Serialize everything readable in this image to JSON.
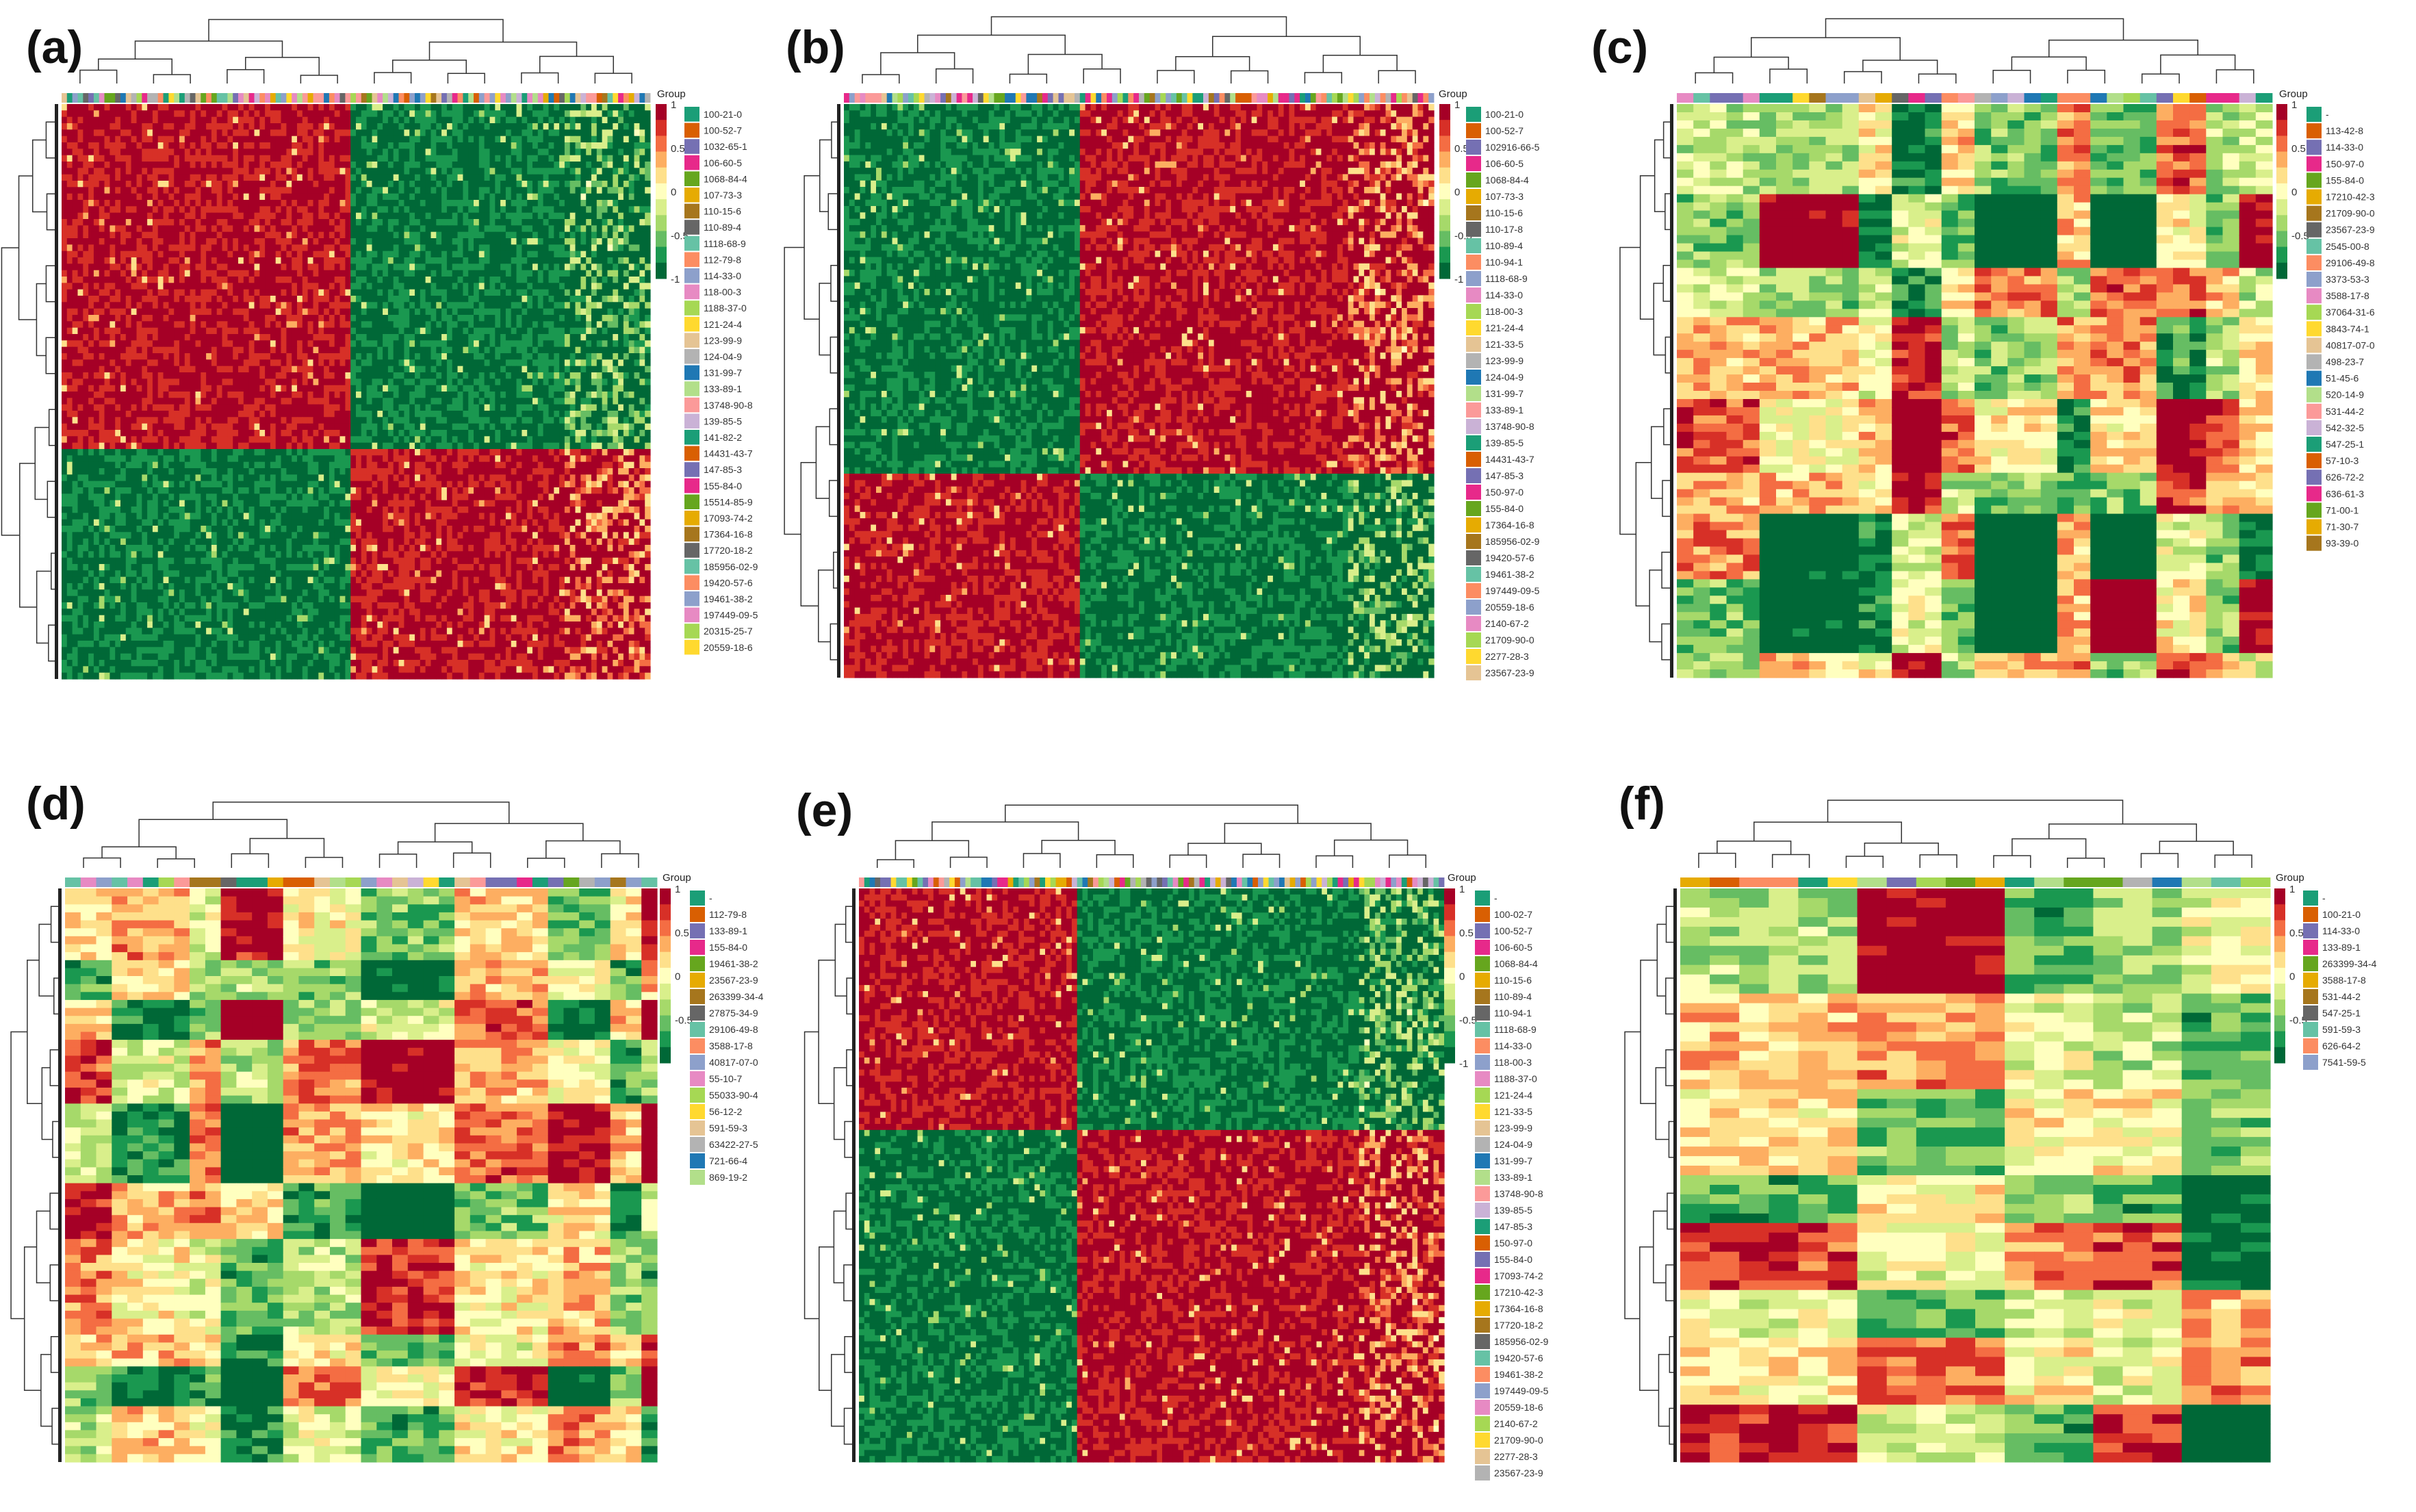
{
  "figure": {
    "legend_title": "Group",
    "colorscale": {
      "colors": [
        "#006837",
        "#1a9850",
        "#66bd63",
        "#a6d96a",
        "#d9ef8b",
        "#ffffbf",
        "#fee08b",
        "#fdae61",
        "#f46d43",
        "#d73027",
        "#a50026"
      ],
      "ticks_a": [
        "1",
        "0.5",
        "0",
        "-0.5",
        "-1"
      ],
      "ticks_b": [
        "1",
        "0.5",
        "0",
        "-0.5",
        "-1"
      ],
      "ticks_c": [
        "1",
        "0.5",
        "0",
        "-0.5"
      ],
      "ticks_d": [
        "1",
        "0.5",
        "0",
        "-0.5"
      ],
      "ticks_e": [
        "1",
        "0.5",
        "0",
        "-0.5",
        "-1"
      ],
      "ticks_f": [
        "1",
        "0.5",
        "0",
        "-0.5"
      ]
    },
    "group_palette": [
      "#1b9e77",
      "#d95f02",
      "#7570b3",
      "#e7298a",
      "#66a61e",
      "#e6ab02",
      "#a6761d",
      "#666666",
      "#66c2a5",
      "#fc8d62",
      "#8da0cb",
      "#e78ac3",
      "#a6d854",
      "#ffd92f",
      "#e5c494",
      "#b3b3b3",
      "#1f78b4",
      "#b2df8a",
      "#fb9a99",
      "#cab2d6"
    ]
  },
  "chart_data": [
    {
      "panel": "(a)",
      "type": "heatmap",
      "legend_title": "Group",
      "colorbar_ticks": [
        1,
        0.5,
        0,
        -0.5,
        -1
      ],
      "groups": [
        "100-21-0",
        "100-52-7",
        "1032-65-1",
        "106-60-5",
        "1068-84-4",
        "107-73-3",
        "110-15-6",
        "110-89-4",
        "1118-68-9",
        "112-79-8",
        "114-33-0",
        "118-00-3",
        "1188-37-0",
        "121-24-4",
        "123-99-9",
        "124-04-9",
        "131-99-7",
        "133-89-1",
        "13748-90-8",
        "139-85-5",
        "141-82-2",
        "14431-43-7",
        "147-85-3",
        "155-84-0",
        "15514-85-9",
        "17093-74-2",
        "17364-16-8",
        "17720-18-2",
        "185956-02-9",
        "19420-57-6",
        "19461-38-2",
        "197449-09-5",
        "20315-25-7",
        "20559-18-6"
      ],
      "pattern": {
        "row_split": 0.6,
        "col_split": 0.49,
        "top_left": "high",
        "top_right": "low",
        "bottom_left": "low",
        "bottom_right": "high"
      }
    },
    {
      "panel": "(b)",
      "type": "heatmap",
      "legend_title": "Group",
      "colorbar_ticks": [
        1,
        0.5,
        0,
        -0.5,
        -1
      ],
      "groups": [
        "100-21-0",
        "100-52-7",
        "102916-66-5",
        "106-60-5",
        "1068-84-4",
        "107-73-3",
        "110-15-6",
        "110-17-8",
        "110-89-4",
        "110-94-1",
        "1118-68-9",
        "114-33-0",
        "118-00-3",
        "121-24-4",
        "121-33-5",
        "123-99-9",
        "124-04-9",
        "131-99-7",
        "133-89-1",
        "13748-90-8",
        "139-85-5",
        "14431-43-7",
        "147-85-3",
        "150-97-0",
        "155-84-0",
        "17364-16-8",
        "185956-02-9",
        "19420-57-6",
        "19461-38-2",
        "197449-09-5",
        "20559-18-6",
        "2140-67-2",
        "21709-90-0",
        "2277-28-3",
        "23567-23-9"
      ],
      "pattern": {
        "row_split": 0.64,
        "col_split": 0.4,
        "top_left": "low",
        "top_right": "high",
        "bottom_left": "high",
        "bottom_right": "low"
      }
    },
    {
      "panel": "(c)",
      "type": "heatmap",
      "legend_title": "Group",
      "colorbar_ticks": [
        1,
        0.5,
        0,
        -0.5
      ],
      "groups": [
        "-",
        "113-42-8",
        "114-33-0",
        "150-97-0",
        "155-84-0",
        "17210-42-3",
        "21709-90-0",
        "23567-23-9",
        "2545-00-8",
        "29106-49-8",
        "3373-53-3",
        "3588-17-8",
        "37064-31-6",
        "3843-74-1",
        "40817-07-0",
        "498-23-7",
        "51-45-6",
        "520-14-9",
        "531-44-2",
        "542-32-5",
        "547-25-1",
        "57-10-3",
        "626-72-2",
        "636-61-3",
        "71-00-1",
        "71-30-7",
        "93-39-0"
      ],
      "pattern": "mixed"
    },
    {
      "panel": "(d)",
      "type": "heatmap",
      "legend_title": "Group",
      "colorbar_ticks": [
        1,
        0.5,
        0,
        -0.5
      ],
      "groups": [
        "-",
        "112-79-8",
        "133-89-1",
        "155-84-0",
        "19461-38-2",
        "23567-23-9",
        "263399-34-4",
        "27875-34-9",
        "29106-49-8",
        "3588-17-8",
        "40817-07-0",
        "55-10-7",
        "55033-90-4",
        "56-12-2",
        "591-59-3",
        "63422-27-5",
        "721-66-4",
        "869-19-2"
      ],
      "pattern": "mixed"
    },
    {
      "panel": "(e)",
      "type": "heatmap",
      "legend_title": "Group",
      "colorbar_ticks": [
        1,
        0.5,
        0,
        -0.5,
        -1
      ],
      "groups": [
        "-",
        "100-02-7",
        "100-52-7",
        "106-60-5",
        "1068-84-4",
        "110-15-6",
        "110-89-4",
        "110-94-1",
        "1118-68-9",
        "114-33-0",
        "118-00-3",
        "1188-37-0",
        "121-24-4",
        "121-33-5",
        "123-99-9",
        "124-04-9",
        "131-99-7",
        "133-89-1",
        "13748-90-8",
        "139-85-5",
        "147-85-3",
        "150-97-0",
        "155-84-0",
        "17093-74-2",
        "17210-42-3",
        "17364-16-8",
        "17720-18-2",
        "185956-02-9",
        "19420-57-6",
        "19461-38-2",
        "197449-09-5",
        "20559-18-6",
        "2140-67-2",
        "21709-90-0",
        "2277-28-3",
        "23567-23-9"
      ],
      "pattern": {
        "row_split": 0.42,
        "col_split": 0.37,
        "top_left": "high",
        "top_right": "low",
        "bottom_left": "low",
        "bottom_right": "high"
      }
    },
    {
      "panel": "(f)",
      "type": "heatmap",
      "legend_title": "Group",
      "colorbar_ticks": [
        1,
        0.5,
        0,
        -0.5
      ],
      "groups": [
        "-",
        "100-21-0",
        "114-33-0",
        "133-89-1",
        "263399-34-4",
        "3588-17-8",
        "531-44-2",
        "547-25-1",
        "591-59-3",
        "626-64-2",
        "7541-59-5"
      ],
      "pattern": "mixed"
    }
  ]
}
